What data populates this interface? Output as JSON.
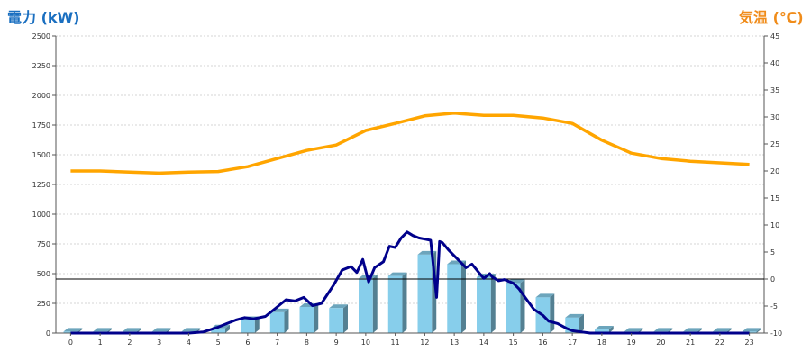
{
  "chart_data": {
    "type": "bar",
    "left_axis": {
      "title": "電力 (kW)",
      "ylim": [
        0,
        2500
      ],
      "ticks": [
        "0",
        "250",
        "500",
        "750",
        "1000",
        "1250",
        "1500",
        "1750",
        "2000",
        "2250",
        "2500"
      ]
    },
    "right_axis": {
      "title": "気温 (℃)",
      "ylim": [
        -10,
        45
      ],
      "ticks": [
        "-10",
        "-5",
        "0",
        "5",
        "10",
        "15",
        "20",
        "25",
        "30",
        "35",
        "40",
        "45"
      ]
    },
    "categories": [
      "0",
      "1",
      "2",
      "3",
      "4",
      "5",
      "6",
      "7",
      "8",
      "9",
      "10",
      "11",
      "12",
      "13",
      "14",
      "15",
      "16",
      "17",
      "18",
      "19",
      "20",
      "21",
      "22",
      "23"
    ],
    "series": [
      {
        "type": "bar",
        "axis": "left",
        "color": "#87ceeb",
        "values": [
          12,
          12,
          12,
          12,
          12,
          40,
          110,
          175,
          220,
          210,
          460,
          480,
          660,
          580,
          470,
          420,
          300,
          130,
          30,
          12,
          12,
          12,
          12,
          12
        ]
      },
      {
        "type": "line",
        "axis": "left",
        "color": "#00008b",
        "x": [
          0,
          1,
          2,
          3,
          4,
          4.5,
          5,
          5.3,
          5.6,
          5.9,
          6.2,
          6.6,
          7,
          7.3,
          7.6,
          7.9,
          8.2,
          8.5,
          8.9,
          9.2,
          9.5,
          9.7,
          9.9,
          10.1,
          10.3,
          10.6,
          10.8,
          11,
          11.2,
          11.4,
          11.6,
          11.8,
          12,
          12.2,
          12.4,
          12.5,
          12.6,
          12.8,
          13,
          13.2,
          13.4,
          13.6,
          13.8,
          14,
          14.2,
          14.3,
          14.5,
          14.7,
          15,
          15.2,
          15.4,
          15.7,
          16,
          16.2,
          16.5,
          16.8,
          17,
          17.3,
          17.6,
          18,
          18.5,
          19,
          20,
          21,
          22,
          23
        ],
        "values": [
          0,
          0,
          0,
          0,
          0,
          10,
          50,
          80,
          110,
          130,
          120,
          140,
          220,
          280,
          270,
          300,
          230,
          250,
          400,
          530,
          560,
          510,
          620,
          430,
          550,
          600,
          730,
          720,
          800,
          850,
          820,
          800,
          790,
          780,
          300,
          770,
          760,
          700,
          650,
          600,
          550,
          580,
          520,
          460,
          500,
          470,
          440,
          450,
          420,
          370,
          300,
          200,
          150,
          100,
          80,
          40,
          20,
          10,
          0,
          0,
          0,
          0,
          0,
          0,
          0,
          0
        ]
      },
      {
        "type": "line",
        "axis": "right",
        "color": "#ffa500",
        "x": [
          0,
          1,
          2,
          3,
          4,
          5,
          6,
          7,
          8,
          9,
          10,
          11,
          12,
          13,
          14,
          15,
          16,
          17,
          18,
          19,
          20,
          21,
          22,
          23
        ],
        "values": [
          20,
          20,
          19.8,
          19.6,
          19.8,
          19.9,
          20.8,
          22.3,
          23.8,
          24.8,
          27.5,
          28.8,
          30.2,
          30.7,
          30.3,
          30.3,
          29.8,
          28.8,
          25.7,
          23.3,
          22.3,
          21.8,
          21.5,
          21.2
        ]
      }
    ],
    "reference_line": {
      "axis": "right",
      "value": 0,
      "color": "#000000"
    },
    "grid": true,
    "legend": "none"
  }
}
